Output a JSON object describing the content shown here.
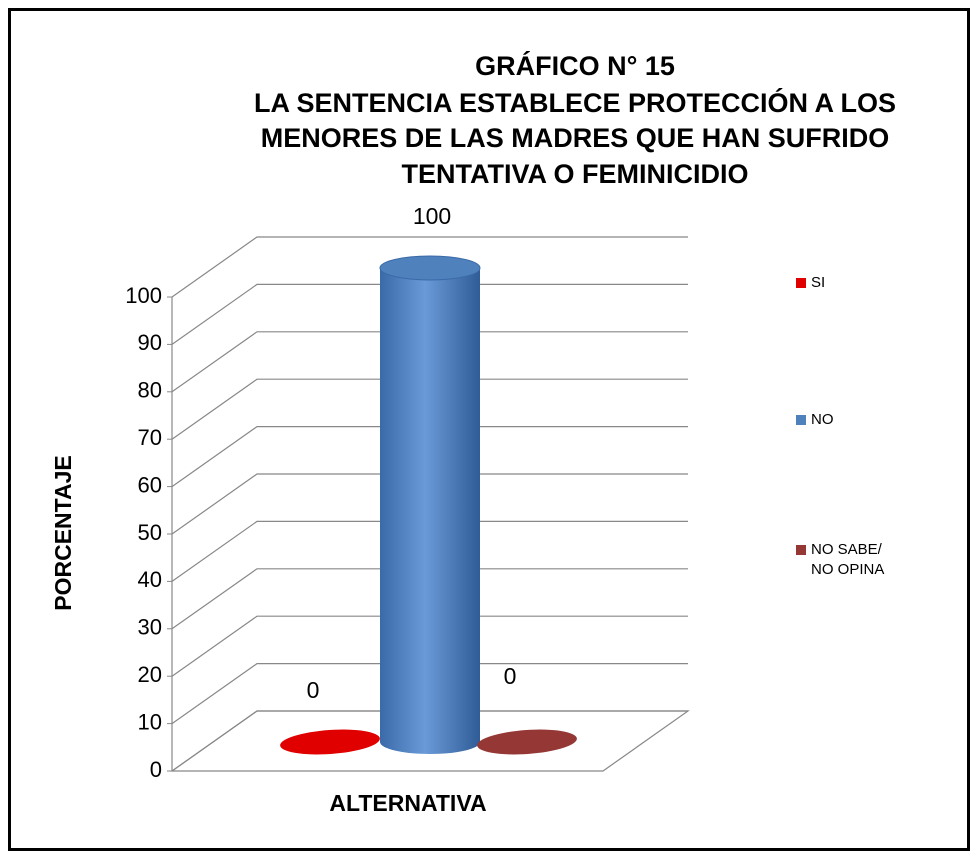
{
  "chart_data": {
    "type": "bar3d",
    "title": [
      "GRÁFICO N° 15",
      "LA SENTENCIA ESTABLECE PROTECCIÓN A LOS",
      "MENORES DE LAS MADRES QUE HAN SUFRIDO",
      "TENTATIVA O FEMINICIDIO"
    ],
    "categories": [
      null
    ],
    "series": [
      {
        "name": "SI",
        "color": "#e00000",
        "values": [
          0
        ]
      },
      {
        "name": "NO",
        "color": "#4f81bd",
        "values": [
          100
        ]
      },
      {
        "name": "NO SABE/NO OPINA",
        "color": "#953735",
        "values": [
          0
        ]
      }
    ],
    "ylim": [
      0,
      100
    ],
    "yticks": [
      0,
      10,
      20,
      30,
      40,
      50,
      60,
      70,
      80,
      90,
      100
    ],
    "ylabel": "PORCENTAJE",
    "xlabel": "ALTERNATIVA",
    "grid": true,
    "legend": "right"
  }
}
